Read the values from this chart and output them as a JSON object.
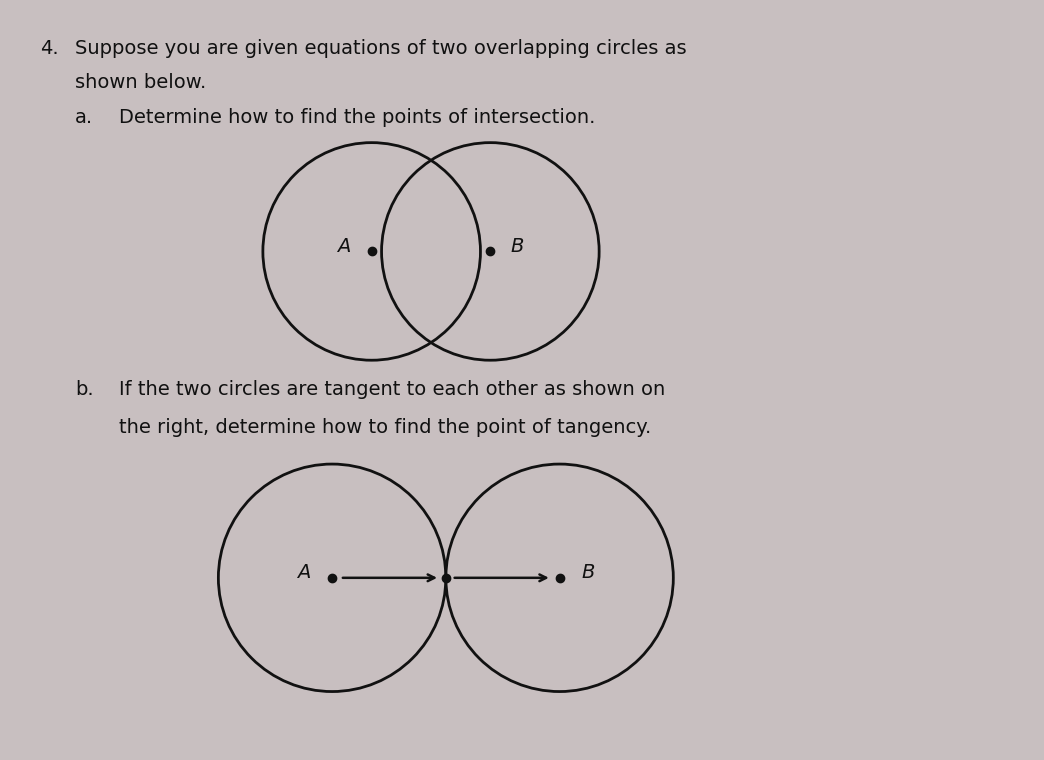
{
  "background_color": "#c8bfc0",
  "fig_width": 10.44,
  "fig_height": 7.6,
  "title_number": "4.",
  "title_text_line1": "Suppose you are given equations of two overlapping circles as",
  "title_text_line2": "shown below.",
  "part_a_label": "a.",
  "part_a_text": "Determine how to find the points of intersection.",
  "part_b_label": "b.",
  "part_b_text_line1": "If the two circles are tangent to each other as shown on",
  "part_b_text_line2": "the right, determine how to find the point of tangency.",
  "label_A_top": "A",
  "label_B_top": "B",
  "label_A_bot": "A",
  "label_B_bot": "B",
  "circle_color": "#111111",
  "circle_linewidth": 2.0,
  "dot_color": "#111111",
  "dot_size": 6,
  "text_color": "#111111",
  "font_size_main": 14,
  "font_size_label": 14,
  "arrow_color": "#111111"
}
